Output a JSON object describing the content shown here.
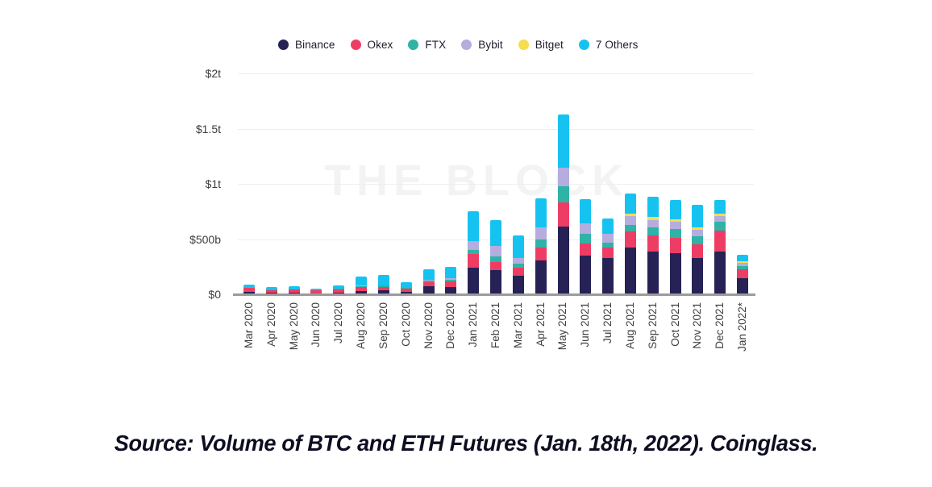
{
  "watermark": {
    "text": "THE BLOCK"
  },
  "source": {
    "text": "Source: Volume of BTC and ETH Futures (Jan. 18th, 2022). Coinglass."
  },
  "colors": {
    "background": "#ffffff",
    "grid": "#eeeeee",
    "axis": "#9b9b9b",
    "tick_label": "#3d3d3d",
    "legend_text": "#1d1d2b",
    "watermark": "#f3f3f3",
    "source_text": "#0e0e22"
  },
  "chart_data": {
    "type": "bar",
    "stacked": true,
    "title": "",
    "xlabel": "",
    "ylabel": "",
    "units": "billions of USD",
    "ylim": [
      0,
      2000
    ],
    "grid": true,
    "legend_position": "top",
    "y_ticks": [
      {
        "label": "$2t",
        "value": 2000
      },
      {
        "label": "$1.5t",
        "value": 1500
      },
      {
        "label": "$1t",
        "value": 1000
      },
      {
        "label": "$500b",
        "value": 500
      },
      {
        "label": "$0",
        "value": 0
      }
    ],
    "categories": [
      "Mar 2020",
      "Apr 2020",
      "May 2020",
      "Jun 2020",
      "Jul 2020",
      "Aug 2020",
      "Sep 2020",
      "Oct 2020",
      "Nov 2020",
      "Dec 2020",
      "Jan 2021",
      "Feb 2021",
      "Mar 2021",
      "Apr 2021",
      "May 2021",
      "Jun 2021",
      "Jul 2021",
      "Aug 2021",
      "Sep 2021",
      "Oct 2021",
      "Nov 2021",
      "Dec 2021",
      "Jan 2022*"
    ],
    "series": [
      {
        "name": "Binance",
        "color": "#262255",
        "values": [
          20,
          12,
          14,
          10,
          15,
          30,
          36,
          24,
          73,
          66,
          243,
          219,
          170,
          304,
          615,
          353,
          329,
          421,
          385,
          372,
          329,
          389,
          146
        ]
      },
      {
        "name": "Okex",
        "color": "#ee3d64",
        "values": [
          35,
          28,
          28,
          24,
          32,
          35,
          33,
          28,
          37,
          49,
          122,
          73,
          73,
          122,
          217,
          110,
          93,
          151,
          150,
          139,
          126,
          188,
          80
        ]
      },
      {
        "name": "FTX",
        "color": "#2fb3a7",
        "values": [
          3,
          2,
          3,
          2,
          3,
          8,
          8,
          5,
          12,
          16,
          36,
          49,
          36,
          73,
          146,
          85,
          48,
          56,
          73,
          80,
          68,
          80,
          29
        ]
      },
      {
        "name": "Bybit",
        "color": "#b4addd",
        "values": [
          2,
          2,
          2,
          2,
          3,
          6,
          6,
          4,
          12,
          15,
          80,
          97,
          53,
          110,
          170,
          97,
          78,
          78,
          66,
          66,
          61,
          53,
          31
        ]
      },
      {
        "name": "Bitget",
        "color": "#f5dd4d",
        "values": [
          0,
          0,
          0,
          0,
          0,
          0,
          0,
          0,
          0,
          0,
          0,
          0,
          0,
          0,
          0,
          0,
          0,
          24,
          24,
          24,
          24,
          20,
          12
        ]
      },
      {
        "name": "7 Others",
        "color": "#16c3f0",
        "values": [
          30,
          21,
          23,
          17,
          30,
          81,
          89,
          49,
          96,
          106,
          274,
          232,
          203,
          257,
          477,
          220,
          142,
          185,
          185,
          177,
          202,
          124,
          60
        ]
      }
    ]
  }
}
